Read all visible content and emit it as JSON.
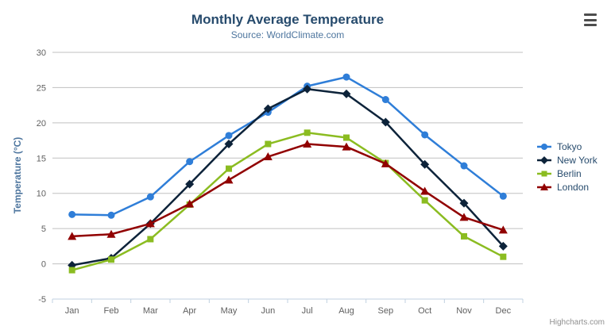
{
  "chart_data": {
    "type": "line",
    "title": "Monthly Average Temperature",
    "subtitle": "Source: WorldClimate.com",
    "xlabel": "",
    "ylabel": "Temperature (°C)",
    "ylim": [
      -5,
      30
    ],
    "y_ticks": [
      -5,
      0,
      5,
      10,
      15,
      20,
      25,
      30
    ],
    "grid": true,
    "legend_position": "right",
    "categories": [
      "Jan",
      "Feb",
      "Mar",
      "Apr",
      "May",
      "Jun",
      "Jul",
      "Aug",
      "Sep",
      "Oct",
      "Nov",
      "Dec"
    ],
    "series": [
      {
        "name": "Tokyo",
        "marker": "circle",
        "color": "#2f7ed8",
        "values": [
          7.0,
          6.9,
          9.5,
          14.5,
          18.2,
          21.5,
          25.2,
          26.5,
          23.3,
          18.3,
          13.9,
          9.6
        ]
      },
      {
        "name": "New York",
        "marker": "diamond",
        "color": "#0d233a",
        "values": [
          -0.2,
          0.8,
          5.7,
          11.3,
          17.0,
          22.0,
          24.8,
          24.1,
          20.1,
          14.1,
          8.6,
          2.5
        ]
      },
      {
        "name": "Berlin",
        "marker": "square",
        "color": "#8bbc21",
        "values": [
          -0.9,
          0.6,
          3.5,
          8.4,
          13.5,
          17.0,
          18.6,
          17.9,
          14.3,
          9.0,
          3.9,
          1.0
        ]
      },
      {
        "name": "London",
        "marker": "triangle",
        "color": "#910000",
        "values": [
          3.9,
          4.2,
          5.7,
          8.5,
          11.9,
          15.2,
          17.0,
          16.6,
          14.2,
          10.3,
          6.6,
          4.8
        ]
      }
    ]
  },
  "colors": {
    "grid": "#c0c0c0",
    "axis_line": "#c0d0e0",
    "axis_label": "#606060",
    "title": "#274b6d",
    "subtitle": "#4d759e",
    "axis_title": "#4d759e",
    "legend_text": "#274b6d",
    "credits": "#909090"
  },
  "credits": {
    "label": "Highcharts.com"
  },
  "toolbar": {
    "export_menu_tooltip": "Chart context menu"
  }
}
